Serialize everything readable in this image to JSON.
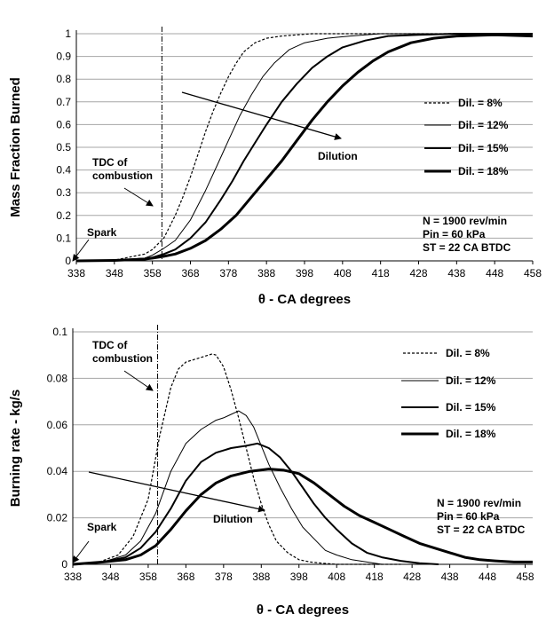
{
  "chart_data": [
    {
      "type": "line",
      "xlabel": "θ -  CA degrees",
      "ylabel": "Mass Fraction Burned",
      "xlim": [
        338,
        458
      ],
      "ylim": [
        0,
        1
      ],
      "x_ticks": [
        "338",
        "348",
        "358",
        "368",
        "378",
        "388",
        "398",
        "408",
        "418",
        "428",
        "438",
        "448",
        "458"
      ],
      "y_ticks": [
        "0",
        "0.1",
        "0.2",
        "0.3",
        "0.4",
        "0.5",
        "0.6",
        "0.7",
        "0.8",
        "0.9",
        "1"
      ],
      "grid": "horizontal",
      "legend_position": "right",
      "series": [
        {
          "name": "Dil. = 8%",
          "style": "dashed",
          "x": [
            338,
            348,
            356,
            358,
            361,
            364,
            366,
            368,
            370,
            372,
            374,
            376,
            378,
            380,
            382,
            385,
            388,
            392,
            396,
            400,
            408,
            418,
            428,
            458
          ],
          "y": [
            0,
            0.003,
            0.03,
            0.05,
            0.1,
            0.2,
            0.28,
            0.37,
            0.47,
            0.57,
            0.66,
            0.74,
            0.81,
            0.87,
            0.92,
            0.96,
            0.98,
            0.99,
            0.995,
            1,
            1,
            1,
            1,
            1
          ]
        },
        {
          "name": "Dil. = 12%",
          "style": "thin",
          "x": [
            338,
            348,
            356,
            358,
            361,
            364,
            368,
            372,
            375,
            378,
            381,
            384,
            387,
            390,
            394,
            398,
            404,
            410,
            418,
            428,
            458
          ],
          "y": [
            0,
            0.002,
            0.012,
            0.025,
            0.055,
            0.09,
            0.18,
            0.31,
            0.42,
            0.53,
            0.64,
            0.73,
            0.81,
            0.87,
            0.93,
            0.96,
            0.98,
            0.99,
            1,
            1,
            1
          ]
        },
        {
          "name": "Dil. = 15%",
          "style": "medium",
          "x": [
            338,
            348,
            356,
            358,
            361,
            364,
            368,
            372,
            376,
            379,
            382,
            385,
            388,
            392,
            396,
            400,
            404,
            408,
            414,
            420,
            428,
            438,
            458
          ],
          "y": [
            0,
            0.002,
            0.01,
            0.015,
            0.03,
            0.05,
            0.1,
            0.17,
            0.27,
            0.35,
            0.44,
            0.52,
            0.6,
            0.7,
            0.78,
            0.85,
            0.9,
            0.94,
            0.97,
            0.99,
            0.995,
            1,
            1
          ]
        },
        {
          "name": "Dil. = 18%",
          "style": "thick",
          "x": [
            338,
            348,
            356,
            358,
            361,
            364,
            368,
            372,
            376,
            380,
            384,
            388,
            392,
            396,
            400,
            404,
            408,
            412,
            416,
            420,
            426,
            432,
            438,
            448,
            458
          ],
          "y": [
            0,
            0.002,
            0.008,
            0.012,
            0.02,
            0.03,
            0.055,
            0.09,
            0.14,
            0.2,
            0.28,
            0.36,
            0.44,
            0.53,
            0.62,
            0.7,
            0.77,
            0.83,
            0.88,
            0.92,
            0.96,
            0.98,
            0.99,
            0.995,
            0.99
          ]
        }
      ],
      "annotations": {
        "tdc": [
          "TDC of",
          "combustion"
        ],
        "tdc_x": 360.5,
        "spark": "Spark",
        "dilution": "Dilution",
        "conditions": [
          "N = 1900 rev/min",
          "Pin = 60 kPa",
          "ST = 22 CA BTDC"
        ]
      }
    },
    {
      "type": "line",
      "xlabel": "θ -  CA degrees",
      "ylabel": "Burning rate  -  kg/s",
      "xlim": [
        338,
        460
      ],
      "ylim": [
        0,
        0.1
      ],
      "x_ticks": [
        "338",
        "348",
        "358",
        "368",
        "378",
        "388",
        "398",
        "408",
        "418",
        "428",
        "438",
        "448",
        "458"
      ],
      "y_ticks": [
        "0",
        "0.02",
        "0.04",
        "0.06",
        "0.08",
        "0.1"
      ],
      "grid": "horizontal",
      "legend_position": "right",
      "series": [
        {
          "name": "Dil. = 8%",
          "style": "dashed",
          "x": [
            338,
            345,
            350,
            354,
            358,
            361,
            364,
            366,
            368,
            370,
            372,
            374,
            375,
            376,
            378,
            380,
            382,
            384,
            386,
            388,
            390,
            392,
            395,
            398,
            401,
            404,
            408,
            412,
            418,
            425
          ],
          "y": [
            0,
            0.001,
            0.004,
            0.012,
            0.028,
            0.055,
            0.076,
            0.084,
            0.087,
            0.088,
            0.089,
            0.09,
            0.0905,
            0.09,
            0.085,
            0.075,
            0.063,
            0.05,
            0.037,
            0.026,
            0.017,
            0.01,
            0.005,
            0.002,
            0.001,
            0.0005,
            0,
            0,
            0,
            0
          ]
        },
        {
          "name": "Dil. = 12%",
          "style": "thin",
          "x": [
            338,
            346,
            352,
            356,
            360,
            364,
            368,
            372,
            376,
            378,
            380,
            382,
            384,
            386,
            388,
            390,
            393,
            396,
            399,
            402,
            405,
            408,
            412,
            416,
            420,
            425
          ],
          "y": [
            0,
            0.001,
            0.004,
            0.01,
            0.022,
            0.04,
            0.052,
            0.058,
            0.062,
            0.063,
            0.0645,
            0.066,
            0.064,
            0.059,
            0.051,
            0.043,
            0.033,
            0.024,
            0.016,
            0.011,
            0.006,
            0.004,
            0.002,
            0.001,
            0,
            0
          ]
        },
        {
          "name": "Dil. = 15%",
          "style": "medium",
          "x": [
            338,
            346,
            352,
            356,
            360,
            364,
            368,
            372,
            376,
            380,
            384,
            387,
            390,
            393,
            396,
            399,
            402,
            405,
            408,
            412,
            416,
            420,
            425,
            430,
            435
          ],
          "y": [
            0,
            0.001,
            0.003,
            0.007,
            0.014,
            0.024,
            0.036,
            0.044,
            0.048,
            0.05,
            0.051,
            0.052,
            0.05,
            0.046,
            0.04,
            0.033,
            0.026,
            0.02,
            0.015,
            0.009,
            0.005,
            0.003,
            0.0015,
            0.0005,
            0
          ]
        },
        {
          "name": "Dil. = 18%",
          "style": "thick",
          "x": [
            338,
            346,
            352,
            356,
            360,
            364,
            368,
            372,
            376,
            380,
            385,
            390,
            394,
            398,
            402,
            406,
            410,
            414,
            418,
            422,
            426,
            430,
            434,
            438,
            442,
            446,
            450,
            455,
            460
          ],
          "y": [
            0,
            0.001,
            0.002,
            0.004,
            0.008,
            0.015,
            0.023,
            0.03,
            0.035,
            0.038,
            0.04,
            0.041,
            0.0405,
            0.039,
            0.035,
            0.03,
            0.025,
            0.021,
            0.018,
            0.015,
            0.012,
            0.009,
            0.007,
            0.005,
            0.003,
            0.002,
            0.0015,
            0.001,
            0.001
          ]
        }
      ],
      "annotations": {
        "tdc": [
          "TDC of",
          "combustion"
        ],
        "tdc_x": 360.5,
        "spark": "Spark",
        "dilution": "Dilution",
        "conditions": [
          "N = 1900 rev/min",
          "Pin = 60 kPa",
          "ST = 22 CA BTDC"
        ]
      }
    }
  ]
}
